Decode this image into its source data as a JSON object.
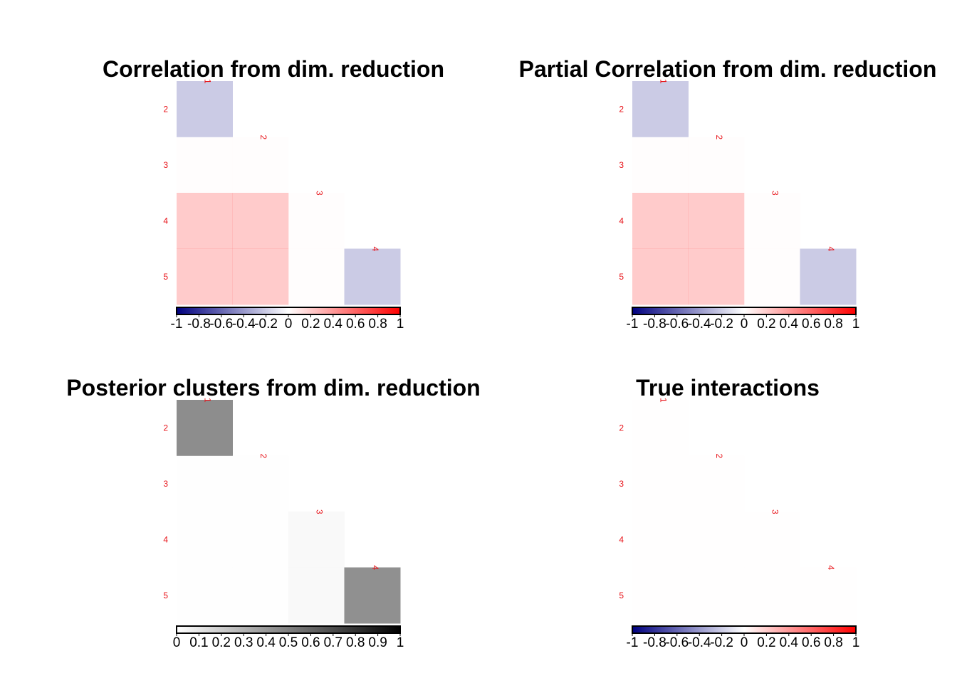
{
  "chart_data": [
    {
      "type": "heatmap",
      "title": "Correlation from dim. reduction",
      "row_labels": [
        "2",
        "3",
        "4",
        "5"
      ],
      "col_labels": [
        "1",
        "2",
        "3",
        "4"
      ],
      "values": [
        [
          -0.45,
          null,
          null,
          null
        ],
        [
          0.02,
          0.02,
          null,
          null
        ],
        [
          0.45,
          0.45,
          0.02,
          null
        ],
        [
          0.45,
          0.45,
          0.02,
          -0.45
        ]
      ],
      "colorbar": {
        "range": [
          -1,
          1
        ],
        "colors": [
          "#00007f",
          "#ffffff",
          "#ff0000"
        ],
        "tick_labels": [
          "-1",
          "-0.8",
          "-0.6",
          "-0.4",
          "-0.2",
          "0",
          "0.2",
          "0.4",
          "0.6",
          "0.8",
          "1"
        ]
      }
    },
    {
      "type": "heatmap",
      "title": "Partial Correlation from dim. reduction",
      "row_labels": [
        "2",
        "3",
        "4",
        "5"
      ],
      "col_labels": [
        "1",
        "2",
        "3",
        "4"
      ],
      "values": [
        [
          -0.45,
          null,
          null,
          null
        ],
        [
          0.02,
          0.02,
          null,
          null
        ],
        [
          0.45,
          0.45,
          0.02,
          null
        ],
        [
          0.45,
          0.45,
          0.02,
          -0.45
        ]
      ],
      "colorbar": {
        "range": [
          -1,
          1
        ],
        "colors": [
          "#00007f",
          "#ffffff",
          "#ff0000"
        ],
        "tick_labels": [
          "-1",
          "-0.8",
          "-0.6",
          "-0.4",
          "-0.2",
          "0",
          "0.2",
          "0.4",
          "0.6",
          "0.8",
          "1"
        ]
      }
    },
    {
      "type": "heatmap",
      "title": "Posterior clusters from dim. reduction",
      "row_labels": [
        "2",
        "3",
        "4",
        "5"
      ],
      "col_labels": [
        "1",
        "2",
        "3",
        "4"
      ],
      "values": [
        [
          0.99,
          null,
          null,
          null
        ],
        [
          0.01,
          0.01,
          null,
          null
        ],
        [
          0.01,
          0.01,
          0.05,
          null
        ],
        [
          0.01,
          0.01,
          0.05,
          0.97
        ]
      ],
      "colorbar": {
        "range": [
          0,
          1
        ],
        "colors": [
          "#ffffff",
          "#000000"
        ],
        "tick_labels": [
          "0",
          "0.1",
          "0.2",
          "0.3",
          "0.4",
          "0.5",
          "0.6",
          "0.7",
          "0.8",
          "0.9",
          "1"
        ]
      }
    },
    {
      "type": "heatmap",
      "title": "True interactions",
      "row_labels": [
        "2",
        "3",
        "4",
        "5"
      ],
      "col_labels": [
        "1",
        "2",
        "3",
        "4"
      ],
      "values": [
        [
          0.01,
          null,
          null,
          null
        ],
        [
          0.01,
          0.01,
          null,
          null
        ],
        [
          0.01,
          0.01,
          0.01,
          null
        ],
        [
          0.01,
          0.01,
          0.01,
          0.01
        ]
      ],
      "colorbar": {
        "range": [
          -1,
          1
        ],
        "colors": [
          "#00007f",
          "#ffffff",
          "#ff0000"
        ],
        "tick_labels": [
          "-1",
          "-0.8",
          "-0.6",
          "-0.4",
          "-0.2",
          "0",
          "0.2",
          "0.4",
          "0.6",
          "0.8",
          "1"
        ]
      }
    }
  ]
}
